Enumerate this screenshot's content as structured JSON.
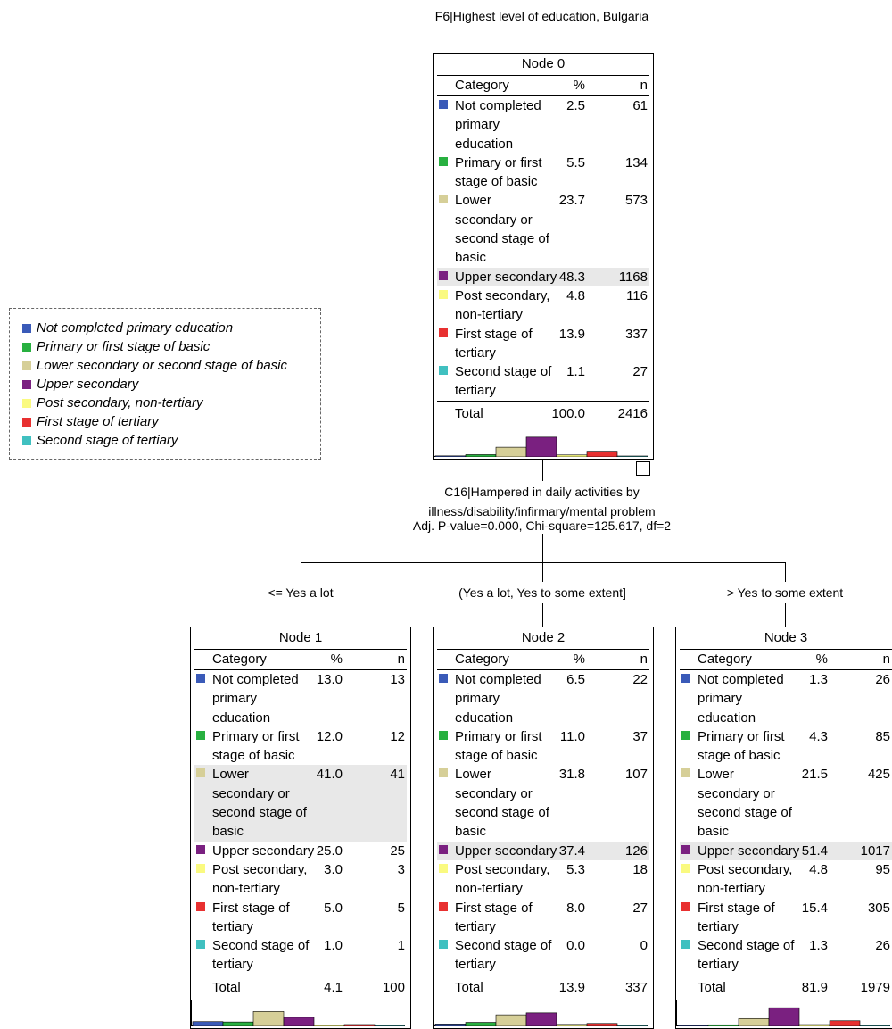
{
  "title": "F6|Highest level of education,  Bulgaria",
  "colors": {
    "not_completed": "#3a5ab8",
    "primary": "#28b040",
    "lower_secondary": "#d6cf98",
    "upper_secondary": "#7a2080",
    "post_secondary": "#fafa80",
    "first_tertiary": "#e83030",
    "second_tertiary": "#40c0c0"
  },
  "legend": [
    {
      "label": "Not completed primary education",
      "color": "#3a5ab8"
    },
    {
      "label": "Primary or first stage of basic",
      "color": "#28b040"
    },
    {
      "label": "Lower secondary or second stage of basic",
      "color": "#d6cf98"
    },
    {
      "label": "Upper secondary",
      "color": "#7a2080"
    },
    {
      "label": "Post secondary, non-tertiary",
      "color": "#fafa80"
    },
    {
      "label": "First stage of tertiary",
      "color": "#e83030"
    },
    {
      "label": "Second stage of tertiary",
      "color": "#40c0c0"
    }
  ],
  "headers": {
    "category": "Category",
    "pct": "%",
    "n": "n",
    "total": "Total"
  },
  "row_labels": [
    [
      "Not completed",
      "primary",
      "education"
    ],
    [
      "Primary or first",
      "stage of basic"
    ],
    [
      "Lower",
      "secondary or",
      "second stage of",
      "basic"
    ],
    [
      "Upper secondary"
    ],
    [
      "Post secondary,",
      "non-tertiary"
    ],
    [
      "First stage of",
      "tertiary"
    ],
    [
      "Second stage of",
      "tertiary"
    ]
  ],
  "nodes": [
    {
      "title": "Node 0",
      "pct": [
        "2.5",
        "5.5",
        "23.7",
        "48.3",
        "4.8",
        "13.9",
        "1.1"
      ],
      "n": [
        "61",
        "134",
        "573",
        "1168",
        "116",
        "337",
        "27"
      ],
      "total_pct": "100.0",
      "total_n": "2416",
      "highlight": 3
    },
    {
      "title": "Node 1",
      "pct": [
        "13.0",
        "12.0",
        "41.0",
        "25.0",
        "3.0",
        "5.0",
        "1.0"
      ],
      "n": [
        "13",
        "12",
        "41",
        "25",
        "3",
        "5",
        "1"
      ],
      "total_pct": "4.1",
      "total_n": "100",
      "highlight": 2
    },
    {
      "title": "Node 2",
      "pct": [
        "6.5",
        "11.0",
        "31.8",
        "37.4",
        "5.3",
        "8.0",
        "0.0"
      ],
      "n": [
        "22",
        "37",
        "107",
        "126",
        "18",
        "27",
        "0"
      ],
      "total_pct": "13.9",
      "total_n": "337",
      "highlight": 3
    },
    {
      "title": "Node 3",
      "pct": [
        "1.3",
        "4.3",
        "21.5",
        "51.4",
        "4.8",
        "15.4",
        "1.3"
      ],
      "n": [
        "26",
        "85",
        "425",
        "1017",
        "95",
        "305",
        "26"
      ],
      "total_pct": "81.9",
      "total_n": "1979",
      "highlight": 3
    }
  ],
  "split": {
    "variable_line1": "C16|Hampered in daily activities by",
    "variable_line2": "illness/disability/infirmary/mental problem",
    "stats": "Adj. P-value=0.000, Chi-square=125.617, df=2"
  },
  "branches": [
    "<= Yes a lot",
    "(Yes a lot, Yes to some extent]",
    "> Yes to some extent"
  ]
}
